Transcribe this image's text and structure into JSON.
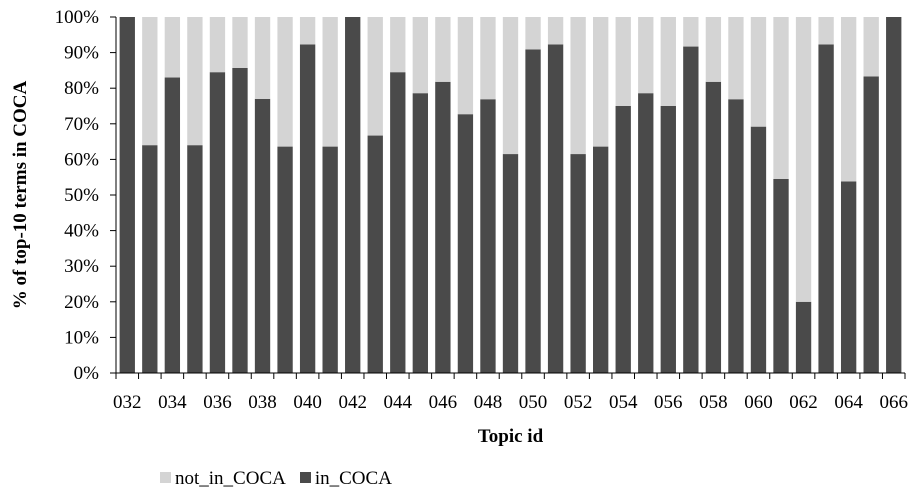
{
  "chart_data": {
    "type": "bar",
    "stacked": true,
    "xlabel": "Topic id",
    "ylabel": "% of top-10 terms in COCA",
    "ylim": [
      0,
      100
    ],
    "yticks": [
      "0%",
      "10%",
      "20%",
      "30%",
      "40%",
      "50%",
      "60%",
      "70%",
      "80%",
      "90%",
      "100%"
    ],
    "categories": [
      "032",
      "033",
      "034",
      "035",
      "036",
      "037",
      "038",
      "039",
      "040",
      "041",
      "042",
      "043",
      "044",
      "045",
      "046",
      "047",
      "048",
      "049",
      "050",
      "051",
      "052",
      "053",
      "054",
      "055",
      "056",
      "057",
      "058",
      "059",
      "060",
      "061",
      "062",
      "063",
      "064",
      "065",
      "066"
    ],
    "xtick_labels": [
      "032",
      "034",
      "036",
      "038",
      "040",
      "042",
      "044",
      "046",
      "048",
      "050",
      "052",
      "054",
      "056",
      "058",
      "060",
      "062",
      "064",
      "066"
    ],
    "series": [
      {
        "name": "in_COCA",
        "color": "#4a4a4a",
        "values": [
          100,
          64,
          83,
          64,
          84.5,
          85.7,
          77,
          63.6,
          92.3,
          63.6,
          100,
          66.7,
          84.5,
          78.6,
          81.8,
          72.7,
          76.9,
          61.5,
          90.9,
          92.3,
          61.5,
          63.6,
          75,
          78.6,
          75,
          91.7,
          81.8,
          76.9,
          69.2,
          54.5,
          20,
          92.3,
          53.8,
          83.3,
          100
        ]
      },
      {
        "name": "not_in_COCA",
        "color": "#d4d4d4",
        "values": [
          0,
          36,
          17,
          36,
          15.5,
          14.3,
          23,
          36.4,
          7.7,
          36.4,
          0,
          33.3,
          15.5,
          21.4,
          18.2,
          27.3,
          23.1,
          38.5,
          9.1,
          7.7,
          38.5,
          36.4,
          25,
          21.4,
          25,
          8.3,
          18.2,
          23.1,
          30.8,
          45.5,
          80,
          7.7,
          46.2,
          16.7,
          0
        ]
      }
    ],
    "legend": [
      {
        "name": "not_in_COCA",
        "color": "#d4d4d4"
      },
      {
        "name": "in_COCA",
        "color": "#4a4a4a"
      }
    ],
    "legend_position": "bottom",
    "grid": false
  }
}
